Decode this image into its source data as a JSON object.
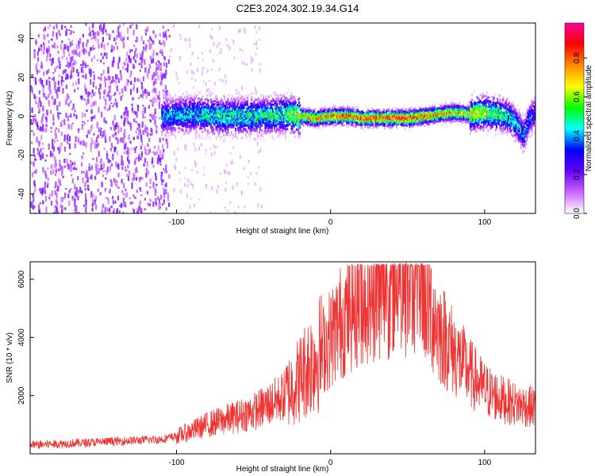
{
  "title": "C2E3.2024.302.19.34.G14",
  "chart_data": [
    {
      "type": "heatmap",
      "xlabel": "Height of straight line (km)",
      "ylabel": "Frequency (Hz)",
      "xlim": [
        -195,
        133
      ],
      "ylim": [
        -50,
        48
      ],
      "x_ticks": [
        -100,
        0,
        100
      ],
      "y_ticks": [
        -40,
        -20,
        0,
        20,
        40
      ],
      "colorbar": {
        "label": "Normalized spectral amplitude",
        "range": [
          0.0,
          0.98
        ],
        "ticks": [
          0.0,
          0.2,
          0.4,
          0.6,
          0.8
        ],
        "tick_labels": [
          "0.0",
          "0.2",
          "0.4",
          "0.6",
          "0.8"
        ],
        "colormap": [
          "#ffffff",
          "#cc66ff",
          "#6600ff",
          "#0000ff",
          "#00ffff",
          "#00ff00",
          "#ffff00",
          "#ff8800",
          "#ff0000",
          "#ff0099"
        ]
      },
      "ridge_frequency": {
        "x": [
          -110,
          -90,
          -70,
          -50,
          -30,
          -20,
          -10,
          0,
          10,
          20,
          30,
          40,
          50,
          60,
          70,
          80,
          90,
          100,
          110,
          115,
          120,
          125,
          128,
          133
        ],
        "y": [
          0,
          1,
          0,
          0,
          1,
          0,
          -1,
          0,
          0,
          -1,
          -1,
          -1,
          -1,
          0,
          1,
          2,
          1,
          2,
          1,
          0,
          -4,
          -10,
          -2,
          2
        ]
      },
      "ridge_amplitude": {
        "x": [
          -110,
          -90,
          -70,
          -50,
          -30,
          -20,
          -10,
          0,
          10,
          20,
          30,
          40,
          50,
          60,
          70,
          80,
          90,
          100,
          110,
          115,
          120,
          125,
          128,
          133
        ],
        "y": [
          0.45,
          0.5,
          0.55,
          0.55,
          0.6,
          0.75,
          0.85,
          0.9,
          0.92,
          0.95,
          0.95,
          0.95,
          0.95,
          0.9,
          0.85,
          0.8,
          0.75,
          0.7,
          0.6,
          0.55,
          0.5,
          0.45,
          0.4,
          0.35
        ]
      },
      "noise_region_x": [
        -195,
        -105
      ]
    },
    {
      "type": "line",
      "xlabel": "Height of straight line (km)",
      "ylabel": "SNR (10 * v/v)",
      "xlim": [
        -195,
        133
      ],
      "ylim": [
        0,
        6600
      ],
      "x_ticks": [
        -100,
        0,
        100
      ],
      "y_ticks": [
        2000,
        4000,
        6000
      ],
      "series": [
        {
          "color": "#ee3333",
          "envelope": {
            "x": [
              -195,
              -160,
              -130,
              -110,
              -100,
              -90,
              -80,
              -70,
              -60,
              -50,
              -40,
              -30,
              -20,
              -15,
              -10,
              -5,
              0,
              10,
              20,
              30,
              40,
              50,
              55,
              60,
              65,
              70,
              80,
              90,
              100,
              110,
              120,
              133
            ],
            "y": [
              300,
              380,
              450,
              500,
              600,
              800,
              1000,
              1150,
              1300,
              1450,
              1700,
              2000,
              2600,
              3000,
              3300,
              3600,
              4000,
              4800,
              5400,
              5700,
              5900,
              6050,
              6100,
              5700,
              5000,
              4300,
              3500,
              2800,
              2200,
              1900,
              1700,
              1600
            ]
          }
        }
      ]
    }
  ]
}
